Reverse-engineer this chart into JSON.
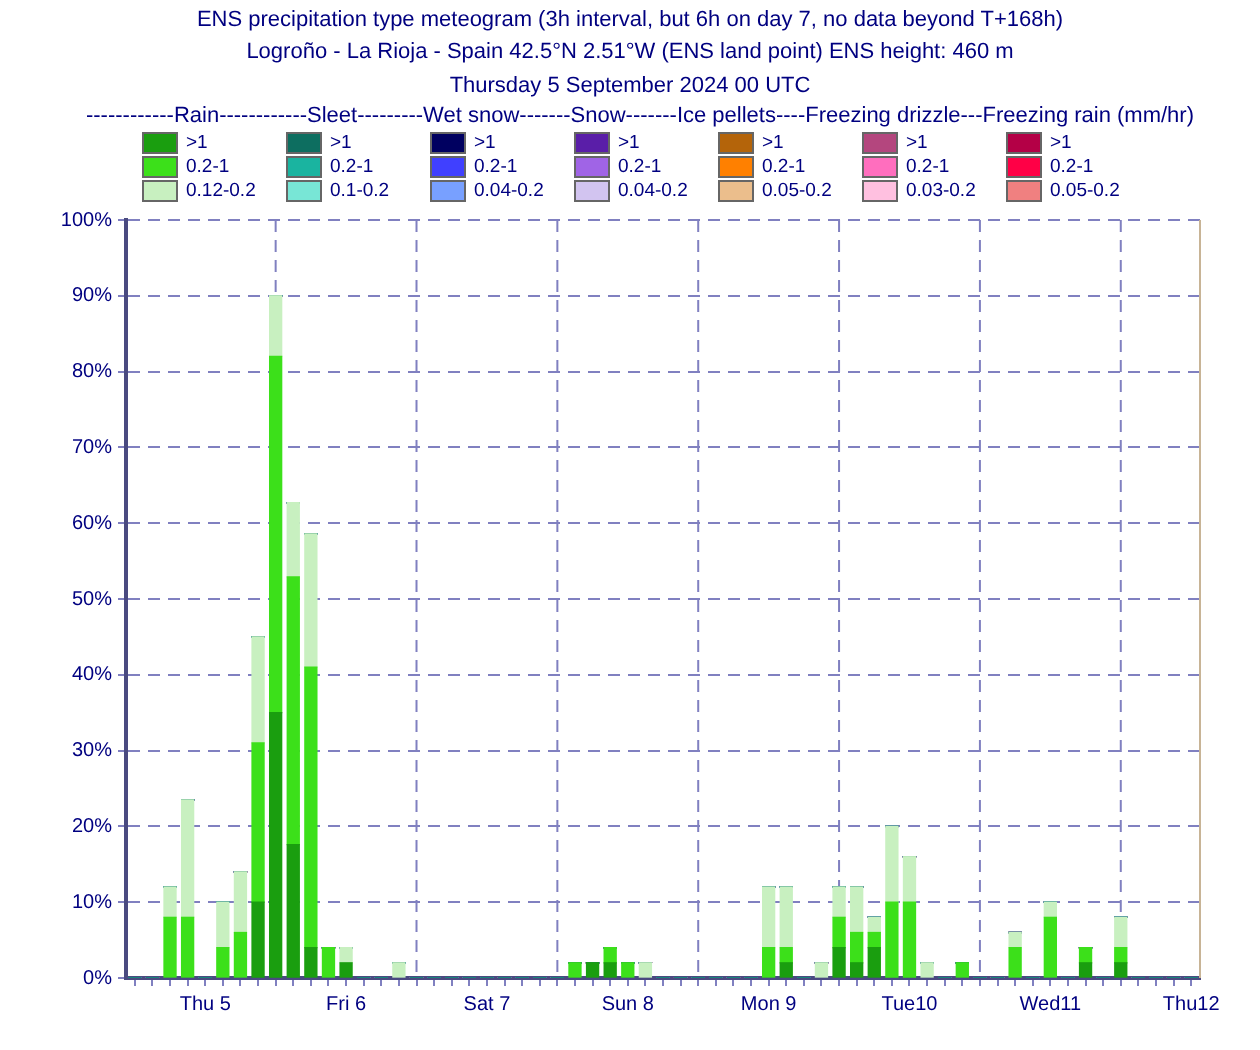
{
  "chart_data": {
    "type": "bar",
    "title": "ENS precipitation type meteogram (3h interval, but 6h on day 7, no data beyond T+168h)",
    "subtitle": "Logroño - La Rioja - Spain 42.5°N 2.51°W (ENS land point) ENS height: 460 m\nThursday  5 September 2024 00 UTC",
    "legend_title": "------------Rain------------Sleet---------Wet snow-------Snow-------Ice pellets----Freezing drizzle---Freezing rain (mm/hr)",
    "categories": [
      null,
      null,
      null,
      null,
      "Thu 5",
      null,
      null,
      null,
      null,
      null,
      null,
      null,
      "Fri 6",
      null,
      null,
      null,
      null,
      null,
      null,
      null,
      "Sat 7",
      null,
      null,
      null,
      null,
      null,
      null,
      null,
      "Sun 8",
      null,
      null,
      null,
      null,
      null,
      null,
      null,
      "Mon 9",
      null,
      null,
      null,
      null,
      null,
      null,
      null,
      "Tue10",
      null,
      null,
      null,
      null,
      null,
      null,
      null,
      "Wed11",
      null,
      null,
      null,
      null,
      null,
      null,
      null,
      "Thu12"
    ],
    "stacked": true,
    "legend": "top",
    "grid": true,
    "ylim": [
      0,
      100
    ],
    "yticks": [
      {
        "value": 0,
        "label": "0%"
      },
      {
        "value": 10,
        "label": "10%"
      },
      {
        "value": 20,
        "label": "20%"
      },
      {
        "value": 30,
        "label": "30%"
      },
      {
        "value": 40,
        "label": "40%"
      },
      {
        "value": 50,
        "label": "50%"
      },
      {
        "value": 60,
        "label": "60%"
      },
      {
        "value": 70,
        "label": "70%"
      },
      {
        "value": 80,
        "label": "80%"
      },
      {
        "value": 90,
        "label": "90%"
      },
      {
        "value": 100,
        "label": "100%"
      }
    ],
    "series": [
      {
        "name": ">1",
        "color": "#1a9e0f",
        "values": [
          null,
          null,
          null,
          null,
          null,
          null,
          null,
          10,
          35,
          17.6,
          4,
          null,
          2,
          null,
          null,
          null,
          null,
          null,
          null,
          null,
          null,
          null,
          null,
          null,
          null,
          null,
          2,
          2,
          null,
          null,
          null,
          null,
          null,
          null,
          null,
          null,
          null,
          2,
          null,
          null,
          4,
          2,
          4,
          null,
          null,
          null,
          null,
          null,
          null,
          null,
          null,
          null,
          null,
          null,
          2,
          null,
          2,
          null,
          null,
          null,
          null
        ]
      },
      {
        "name": "0.2-1",
        "color": "#3ce01a",
        "values": [
          null,
          null,
          8,
          8,
          null,
          4,
          6,
          21,
          47,
          35.3,
          37,
          4,
          null,
          null,
          null,
          null,
          null,
          null,
          null,
          null,
          null,
          null,
          null,
          null,
          null,
          2,
          null,
          2,
          2,
          null,
          null,
          null,
          null,
          null,
          null,
          null,
          4,
          2,
          null,
          null,
          4,
          4,
          2,
          10,
          10,
          null,
          null,
          2,
          null,
          null,
          4,
          null,
          8,
          null,
          2,
          null,
          2,
          null,
          null,
          null,
          null
        ]
      },
      {
        "name": "0.12-0.2",
        "color": "#c8f0c0",
        "values": [
          null,
          null,
          4,
          15.5,
          null,
          6,
          8,
          14,
          8,
          9.8,
          17.6,
          null,
          2,
          null,
          null,
          2,
          null,
          null,
          null,
          null,
          null,
          null,
          null,
          null,
          null,
          null,
          null,
          null,
          null,
          2,
          null,
          null,
          null,
          null,
          null,
          null,
          8,
          8,
          null,
          2,
          4,
          6,
          2,
          10,
          6,
          2,
          null,
          null,
          null,
          null,
          2,
          null,
          2,
          null,
          null,
          null,
          4,
          null,
          null,
          null,
          null
        ]
      },
      {
        "name": ">1",
        "color": "#0d6e60",
        "values": [
          0,
          0,
          0,
          0,
          0,
          0,
          0,
          0,
          0,
          0,
          0,
          0,
          0,
          0,
          0,
          0,
          0,
          0,
          0,
          0,
          0,
          0,
          0,
          0,
          0,
          0,
          0,
          0,
          0,
          0,
          0,
          0,
          0,
          0,
          0,
          0,
          0,
          0,
          0,
          0,
          0,
          0,
          0,
          0,
          0,
          0,
          0,
          0,
          0,
          0,
          0,
          0,
          0,
          0,
          0,
          0,
          0,
          0,
          0,
          0,
          0
        ]
      },
      {
        "name": "0.2-1",
        "color": "#1ab4a0",
        "values": [
          0,
          0,
          0,
          0,
          0,
          0,
          0,
          0,
          0,
          0,
          0,
          0,
          0,
          0,
          0,
          0,
          0,
          0,
          0,
          0,
          0,
          0,
          0,
          0,
          0,
          0,
          0,
          0,
          0,
          0,
          0,
          0,
          0,
          0,
          0,
          0,
          0,
          0,
          0,
          0,
          0,
          0,
          0,
          0,
          0,
          0,
          0,
          0,
          0,
          0,
          0,
          0,
          0,
          0,
          0,
          0,
          0,
          0,
          0,
          0,
          0
        ]
      },
      {
        "name": "0.1-0.2",
        "color": "#78e6d6",
        "values": [
          0,
          0,
          0,
          0,
          0,
          0,
          0,
          0,
          0,
          0,
          0,
          0,
          0,
          0,
          0,
          0,
          0,
          0,
          0,
          0,
          0,
          0,
          0,
          0,
          0,
          0,
          0,
          0,
          0,
          0,
          0,
          0,
          0,
          0,
          0,
          0,
          0,
          0,
          0,
          0,
          0,
          0,
          0,
          0,
          0,
          0,
          0,
          0,
          0,
          0,
          0,
          0,
          0,
          0,
          0,
          0,
          0,
          0,
          0,
          0,
          0
        ]
      },
      {
        "name": ">1",
        "color": "#000060",
        "values": [
          0,
          0,
          0,
          0,
          0,
          0,
          0,
          0,
          0,
          0,
          0,
          0,
          0,
          0,
          0,
          0,
          0,
          0,
          0,
          0,
          0,
          0,
          0,
          0,
          0,
          0,
          0,
          0,
          0,
          0,
          0,
          0,
          0,
          0,
          0,
          0,
          0,
          0,
          0,
          0,
          0,
          0,
          0,
          0,
          0,
          0,
          0,
          0,
          0,
          0,
          0,
          0,
          0,
          0,
          0,
          0,
          0,
          0,
          0,
          0,
          0
        ]
      },
      {
        "name": "0.2-1",
        "color": "#4040ff",
        "values": [
          0,
          0,
          0,
          0,
          0,
          0,
          0,
          0,
          0,
          0,
          0,
          0,
          0,
          0,
          0,
          0,
          0,
          0,
          0,
          0,
          0,
          0,
          0,
          0,
          0,
          0,
          0,
          0,
          0,
          0,
          0,
          0,
          0,
          0,
          0,
          0,
          0,
          0,
          0,
          0,
          0,
          0,
          0,
          0,
          0,
          0,
          0,
          0,
          0,
          0,
          0,
          0,
          0,
          0,
          0,
          0,
          0,
          0,
          0,
          0,
          0
        ]
      },
      {
        "name": "0.04-0.2",
        "color": "#78a0ff",
        "values": [
          0,
          0,
          0,
          0,
          0,
          0,
          0,
          0,
          0,
          0,
          0,
          0,
          0,
          0,
          0,
          0,
          0,
          0,
          0,
          0,
          0,
          0,
          0,
          0,
          0,
          0,
          0,
          0,
          0,
          0,
          0,
          0,
          0,
          0,
          0,
          0,
          0,
          0,
          0,
          0,
          0,
          0,
          0,
          0,
          0,
          0,
          0,
          0,
          0,
          0,
          0,
          0,
          0,
          0,
          0,
          0,
          0,
          0,
          0,
          0,
          0
        ]
      },
      {
        "name": ">1",
        "color": "#5a1ea8",
        "values": [
          0,
          0,
          0,
          0,
          0,
          0,
          0,
          0,
          0,
          0,
          0,
          0,
          0,
          0,
          0,
          0,
          0,
          0,
          0,
          0,
          0,
          0,
          0,
          0,
          0,
          0,
          0,
          0,
          0,
          0,
          0,
          0,
          0,
          0,
          0,
          0,
          0,
          0,
          0,
          0,
          0,
          0,
          0,
          0,
          0,
          0,
          0,
          0,
          0,
          0,
          0,
          0,
          0,
          0,
          0,
          0,
          0,
          0,
          0,
          0,
          0
        ]
      },
      {
        "name": "0.2-1",
        "color": "#a064e6",
        "values": [
          0,
          0,
          0,
          0,
          0,
          0,
          0,
          0,
          0,
          0,
          0,
          0,
          0,
          0,
          0,
          0,
          0,
          0,
          0,
          0,
          0,
          0,
          0,
          0,
          0,
          0,
          0,
          0,
          0,
          0,
          0,
          0,
          0,
          0,
          0,
          0,
          0,
          0,
          0,
          0,
          0,
          0,
          0,
          0,
          0,
          0,
          0,
          0,
          0,
          0,
          0,
          0,
          0,
          0,
          0,
          0,
          0,
          0,
          0,
          0,
          0
        ]
      },
      {
        "name": "0.04-0.2",
        "color": "#d2c4f0",
        "values": [
          0,
          0,
          0,
          0,
          0,
          0,
          0,
          0,
          0,
          0,
          0,
          0,
          0,
          0,
          0,
          0,
          0,
          0,
          0,
          0,
          0,
          0,
          0,
          0,
          0,
          0,
          0,
          0,
          0,
          0,
          0,
          0,
          0,
          0,
          0,
          0,
          0,
          0,
          0,
          0,
          0,
          0,
          0,
          0,
          0,
          0,
          0,
          0,
          0,
          0,
          0,
          0,
          0,
          0,
          0,
          0,
          0,
          0,
          0,
          0,
          0
        ]
      },
      {
        "name": ">1",
        "color": "#b4640a",
        "values": [
          0,
          0,
          0,
          0,
          0,
          0,
          0,
          0,
          0,
          0,
          0,
          0,
          0,
          0,
          0,
          0,
          0,
          0,
          0,
          0,
          0,
          0,
          0,
          0,
          0,
          0,
          0,
          0,
          0,
          0,
          0,
          0,
          0,
          0,
          0,
          0,
          0,
          0,
          0,
          0,
          0,
          0,
          0,
          0,
          0,
          0,
          0,
          0,
          0,
          0,
          0,
          0,
          0,
          0,
          0,
          0,
          0,
          0,
          0,
          0,
          0
        ]
      },
      {
        "name": "0.2-1",
        "color": "#ff8000",
        "values": [
          0,
          0,
          0,
          0,
          0,
          0,
          0,
          0,
          0,
          0,
          0,
          0,
          0,
          0,
          0,
          0,
          0,
          0,
          0,
          0,
          0,
          0,
          0,
          0,
          0,
          0,
          0,
          0,
          0,
          0,
          0,
          0,
          0,
          0,
          0,
          0,
          0,
          0,
          0,
          0,
          0,
          0,
          0,
          0,
          0,
          0,
          0,
          0,
          0,
          0,
          0,
          0,
          0,
          0,
          0,
          0,
          0,
          0,
          0,
          0,
          0
        ]
      },
      {
        "name": "0.05-0.2",
        "color": "#ebbe8c",
        "values": [
          0,
          0,
          0,
          0,
          0,
          0,
          0,
          0,
          0,
          0,
          0,
          0,
          0,
          0,
          0,
          0,
          0,
          0,
          0,
          0,
          0,
          0,
          0,
          0,
          0,
          0,
          0,
          0,
          0,
          0,
          0,
          0,
          0,
          0,
          0,
          0,
          0,
          0,
          0,
          0,
          0,
          0,
          0,
          0,
          0,
          0,
          0,
          0,
          0,
          0,
          0,
          0,
          0,
          0,
          0,
          0,
          0,
          0,
          0,
          0,
          0
        ]
      },
      {
        "name": ">1",
        "color": "#b4467e",
        "values": [
          0,
          0,
          0,
          0,
          0,
          0,
          0,
          0,
          0,
          0,
          0,
          0,
          0,
          0,
          0,
          0,
          0,
          0,
          0,
          0,
          0,
          0,
          0,
          0,
          0,
          0,
          0,
          0,
          0,
          0,
          0,
          0,
          0,
          0,
          0,
          0,
          0,
          0,
          0,
          0,
          0,
          0,
          0,
          0,
          0,
          0,
          0,
          0,
          0,
          0,
          0,
          0,
          0,
          0,
          0,
          0,
          0,
          0,
          0,
          0,
          0
        ]
      },
      {
        "name": "0.2-1",
        "color": "#ff6ebe",
        "values": [
          0,
          0,
          0,
          0,
          0,
          0,
          0,
          0,
          0,
          0,
          0,
          0,
          0,
          0,
          0,
          0,
          0,
          0,
          0,
          0,
          0,
          0,
          0,
          0,
          0,
          0,
          0,
          0,
          0,
          0,
          0,
          0,
          0,
          0,
          0,
          0,
          0,
          0,
          0,
          0,
          0,
          0,
          0,
          0,
          0,
          0,
          0,
          0,
          0,
          0,
          0,
          0,
          0,
          0,
          0,
          0,
          0,
          0,
          0,
          0,
          0
        ]
      },
      {
        "name": "0.03-0.2",
        "color": "#ffc0e0",
        "values": [
          0,
          0,
          0,
          0,
          0,
          0,
          0,
          0,
          0,
          0,
          0,
          0,
          0,
          0,
          0,
          0,
          0,
          0,
          0,
          0,
          0,
          0,
          0,
          0,
          0,
          0,
          0,
          0,
          0,
          0,
          0,
          0,
          0,
          0,
          0,
          0,
          0,
          0,
          0,
          0,
          0,
          0,
          0,
          0,
          0,
          0,
          0,
          0,
          0,
          0,
          0,
          0,
          0,
          0,
          0,
          0,
          0,
          0,
          0,
          0,
          0
        ]
      },
      {
        "name": ">1",
        "color": "#b40046",
        "values": [
          0,
          0,
          0,
          0,
          0,
          0,
          0,
          0,
          0,
          0,
          0,
          0,
          0,
          0,
          0,
          0,
          0,
          0,
          0,
          0,
          0,
          0,
          0,
          0,
          0,
          0,
          0,
          0,
          0,
          0,
          0,
          0,
          0,
          0,
          0,
          0,
          0,
          0,
          0,
          0,
          0,
          0,
          0,
          0,
          0,
          0,
          0,
          0,
          0,
          0,
          0,
          0,
          0,
          0,
          0,
          0,
          0,
          0,
          0,
          0,
          0
        ]
      },
      {
        "name": "0.2-1",
        "color": "#ff0046",
        "values": [
          0,
          0,
          0,
          0,
          0,
          0,
          0,
          0,
          0,
          0,
          0,
          0,
          0,
          0,
          0,
          0,
          0,
          0,
          0,
          0,
          0,
          0,
          0,
          0,
          0,
          0,
          0,
          0,
          0,
          0,
          0,
          0,
          0,
          0,
          0,
          0,
          0,
          0,
          0,
          0,
          0,
          0,
          0,
          0,
          0,
          0,
          0,
          0,
          0,
          0,
          0,
          0,
          0,
          0,
          0,
          0,
          0,
          0,
          0,
          0,
          0
        ]
      },
      {
        "name": "0.05-0.2",
        "color": "#f08080",
        "values": [
          0,
          0,
          0,
          0,
          0,
          0,
          0,
          0,
          0,
          0,
          0,
          0,
          0,
          0,
          0,
          0,
          0,
          0,
          0,
          0,
          0,
          0,
          0,
          0,
          0,
          0,
          0,
          0,
          0,
          0,
          0,
          0,
          0,
          0,
          0,
          0,
          0,
          0,
          0,
          0,
          0,
          0,
          0,
          0,
          0,
          0,
          0,
          0,
          0,
          0,
          0,
          0,
          0,
          0,
          0,
          0,
          0,
          0,
          0,
          0,
          0
        ]
      }
    ]
  }
}
